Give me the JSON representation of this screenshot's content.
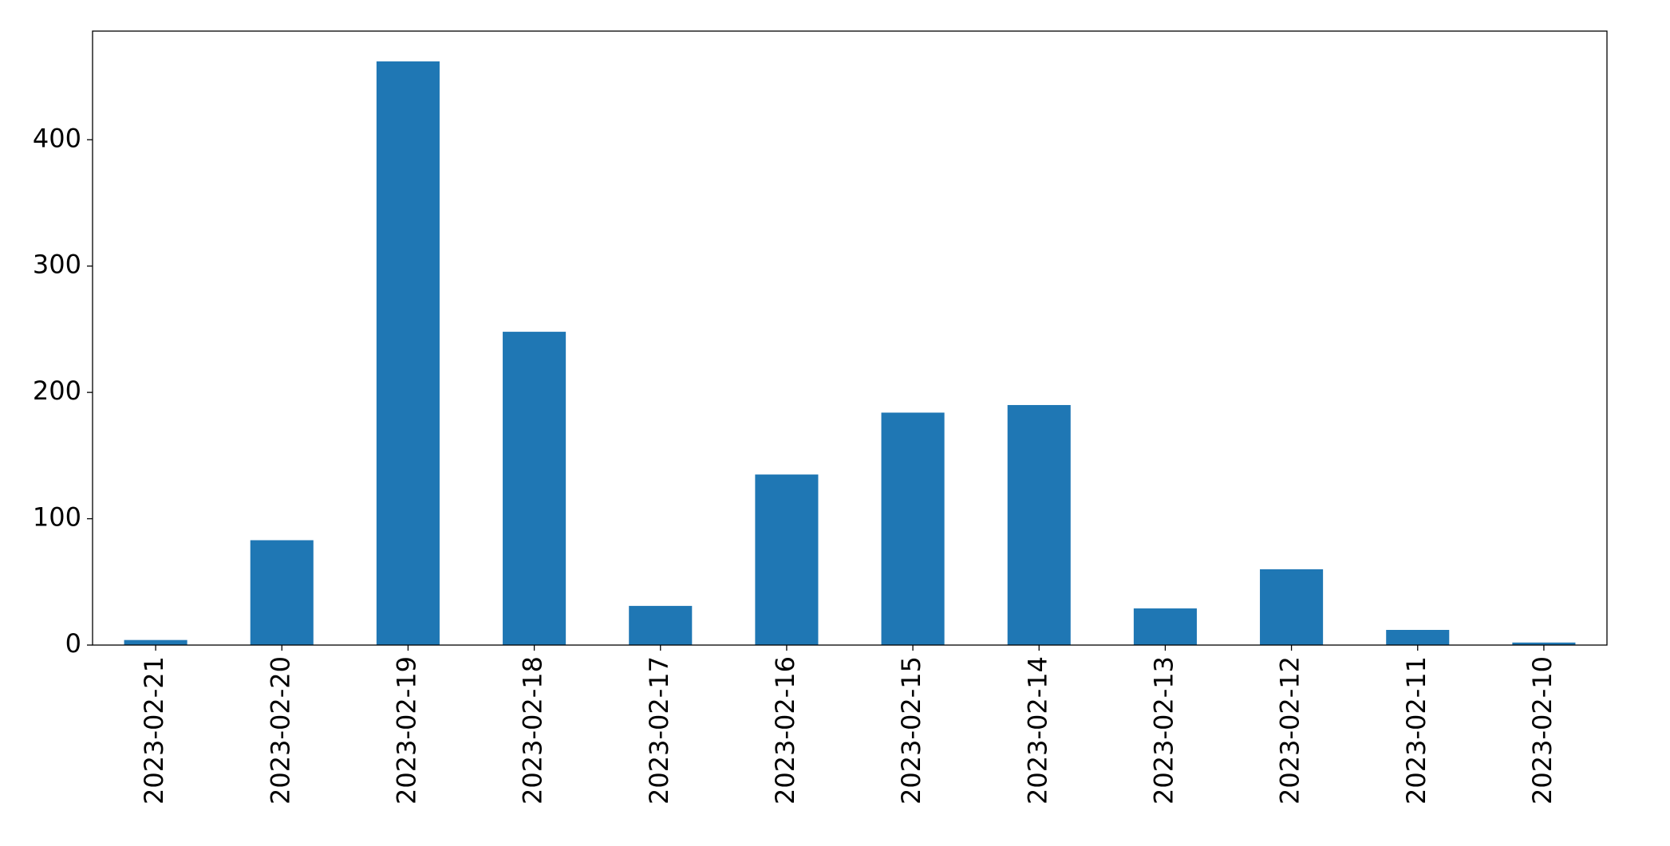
{
  "chart_data": {
    "type": "bar",
    "categories": [
      "2023-02-21",
      "2023-02-20",
      "2023-02-19",
      "2023-02-18",
      "2023-02-17",
      "2023-02-16",
      "2023-02-15",
      "2023-02-14",
      "2023-02-13",
      "2023-02-12",
      "2023-02-11",
      "2023-02-10"
    ],
    "values": [
      4,
      83,
      462,
      248,
      31,
      135,
      184,
      190,
      29,
      60,
      12,
      2
    ],
    "color": "#1f77b4",
    "ylim": [
      0,
      486
    ],
    "yticks": [
      0,
      100,
      200,
      300,
      400
    ],
    "grid": false
  }
}
